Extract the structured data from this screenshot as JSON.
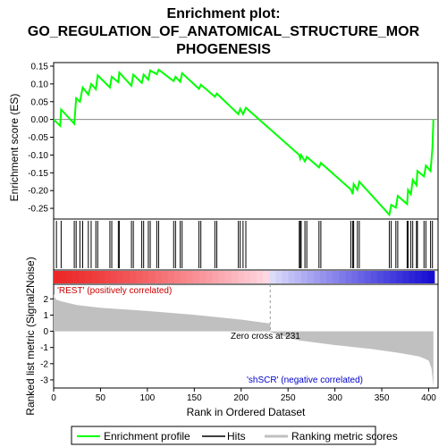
{
  "chart_data": {
    "type": "line",
    "title_lines": [
      "Enrichment plot:",
      "GO_REGULATION_OF_ANATOMICAL_STRUCTURE_MOR",
      "PHOGENESIS"
    ],
    "xlabel": "Rank in Ordered Dataset",
    "es_panel": {
      "ylabel": "Enrichment score (ES)",
      "ylim": [
        -0.28,
        0.16
      ],
      "yticks": [
        0.15,
        0.1,
        0.05,
        0.0,
        -0.05,
        -0.1,
        -0.15,
        -0.2,
        -0.25
      ],
      "ytick_labels": [
        "0.15",
        "0.10",
        "0.05",
        "0.00",
        "-0.05",
        "-0.10",
        "-0.15",
        "-0.20",
        "-0.25"
      ],
      "series_name": "Enrichment profile",
      "color": "#00ff00",
      "points": [
        [
          0,
          0.0
        ],
        [
          7,
          -0.018
        ],
        [
          8,
          0.028
        ],
        [
          22,
          -0.012
        ],
        [
          24,
          0.06
        ],
        [
          28,
          0.05
        ],
        [
          31,
          0.09
        ],
        [
          37,
          0.07
        ],
        [
          40,
          0.1
        ],
        [
          45,
          0.085
        ],
        [
          47,
          0.124
        ],
        [
          60,
          0.09
        ],
        [
          62,
          0.12
        ],
        [
          69,
          0.105
        ],
        [
          70,
          0.132
        ],
        [
          83,
          0.095
        ],
        [
          85,
          0.126
        ],
        [
          94,
          0.103
        ],
        [
          96,
          0.126
        ],
        [
          101,
          0.112
        ],
        [
          103,
          0.138
        ],
        [
          110,
          0.127
        ],
        [
          112,
          0.14
        ],
        [
          128,
          0.108
        ],
        [
          130,
          0.12
        ],
        [
          135,
          0.106
        ],
        [
          137,
          0.13
        ],
        [
          155,
          0.086
        ],
        [
          157,
          0.098
        ],
        [
          172,
          0.064
        ],
        [
          174,
          0.073
        ],
        [
          197,
          0.015
        ],
        [
          199,
          0.03
        ],
        [
          202,
          0.015
        ],
        [
          205,
          0.033
        ],
        [
          262,
          -0.1
        ],
        [
          263,
          -0.11
        ],
        [
          264,
          -0.1
        ],
        [
          268,
          -0.118
        ],
        [
          270,
          -0.105
        ],
        [
          283,
          -0.135
        ],
        [
          285,
          -0.122
        ],
        [
          317,
          -0.197
        ],
        [
          319,
          -0.21
        ],
        [
          320,
          -0.182
        ],
        [
          324,
          -0.198
        ],
        [
          326,
          -0.175
        ],
        [
          358,
          -0.268
        ],
        [
          360,
          -0.24
        ],
        [
          365,
          -0.248
        ],
        [
          367,
          -0.215
        ],
        [
          377,
          -0.238
        ],
        [
          378,
          -0.198
        ],
        [
          381,
          -0.21
        ],
        [
          383,
          -0.17
        ],
        [
          387,
          -0.185
        ],
        [
          388,
          -0.145
        ],
        [
          395,
          -0.16
        ],
        [
          397,
          -0.13
        ],
        [
          402,
          -0.145
        ],
        [
          404,
          -0.08
        ],
        [
          405,
          0.0
        ]
      ]
    },
    "hits": [
      3,
      8,
      22,
      24,
      28,
      31,
      37,
      40,
      45,
      47,
      60,
      62,
      69,
      70,
      83,
      85,
      94,
      96,
      101,
      103,
      110,
      112,
      128,
      130,
      135,
      137,
      155,
      157,
      172,
      174,
      197,
      199,
      202,
      205,
      262,
      263,
      264,
      268,
      270,
      283,
      285,
      317,
      319,
      320,
      324,
      326,
      358,
      360,
      365,
      367,
      377,
      378,
      381,
      383,
      387,
      388,
      395,
      397,
      402,
      404
    ],
    "metric_panel": {
      "ylabel": "Ranked list metric (Signal2Noise)",
      "ylim": [
        -3.5,
        2.9
      ],
      "yticks": [
        2,
        1,
        0,
        -1,
        -2,
        -3
      ],
      "ytick_labels": [
        "2",
        "1",
        "0",
        "-1",
        "-2",
        "-3"
      ],
      "positive_label": "'REST' (positively correlated)",
      "negative_label": "'shSCR' (negative correlated)",
      "zero_cross_label": "Zero cross at 231",
      "zero_cross": 231,
      "n": 406,
      "profile": [
        [
          0,
          2.3
        ],
        [
          1,
          2.1
        ],
        [
          3,
          1.95
        ],
        [
          8,
          1.85
        ],
        [
          15,
          1.75
        ],
        [
          25,
          1.62
        ],
        [
          50,
          1.45
        ],
        [
          100,
          1.25
        ],
        [
          150,
          1.02
        ],
        [
          200,
          0.72
        ],
        [
          231,
          0.48
        ],
        [
          231,
          -0.05
        ],
        [
          260,
          -0.55
        ],
        [
          300,
          -0.85
        ],
        [
          340,
          -1.1
        ],
        [
          370,
          -1.35
        ],
        [
          390,
          -1.55
        ],
        [
          400,
          -1.8
        ],
        [
          403,
          -2.3
        ],
        [
          405,
          -3.4
        ]
      ]
    },
    "xlim": [
      0,
      410
    ],
    "xticks": [
      0,
      50,
      100,
      150,
      200,
      250,
      300,
      350,
      400
    ],
    "xtick_labels": [
      "0",
      "50",
      "100",
      "150",
      "200",
      "250",
      "300",
      "350",
      "400"
    ],
    "legend": {
      "placement": "bottom",
      "items": [
        "Enrichment profile",
        "Hits",
        "Ranking metric scores"
      ]
    },
    "grid": false
  }
}
